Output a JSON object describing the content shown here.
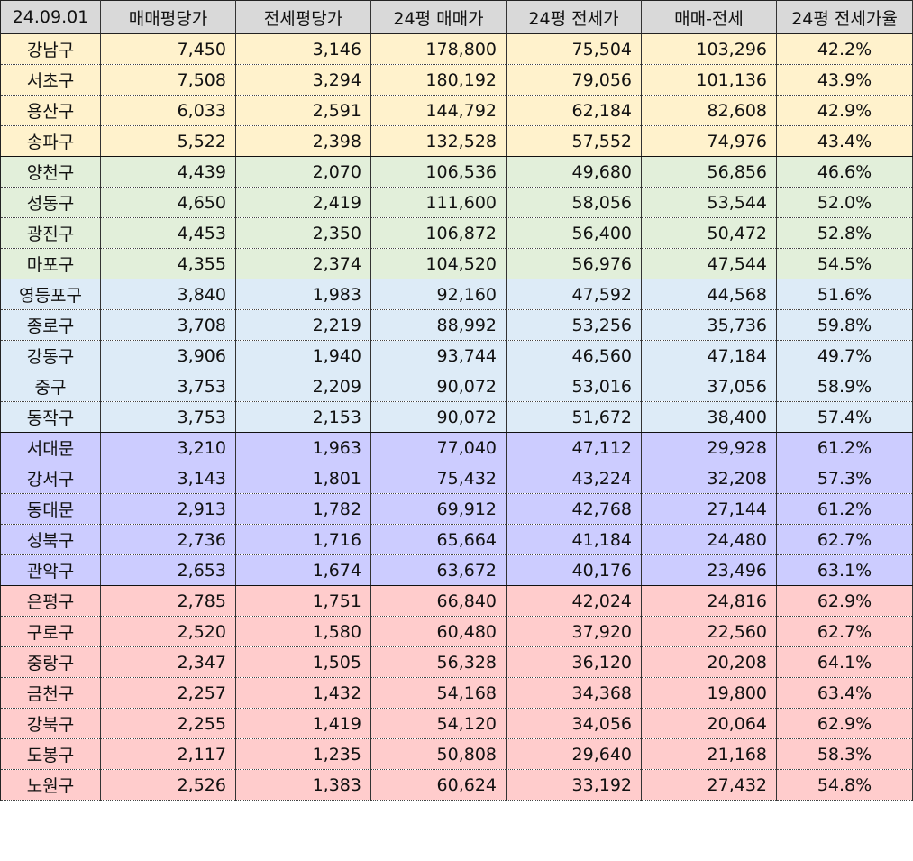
{
  "header": [
    "24.09.01",
    "매매평당가",
    "전세평당가",
    "24평 매매가",
    "24평 전세가",
    "매매-전세",
    "24평 전세가율"
  ],
  "group_colors": [
    "#fff2cc",
    "#e2efda",
    "#ddebf7",
    "#ccccff",
    "#ffcccc"
  ],
  "rows": [
    {
      "group": 1,
      "cells": [
        "강남구",
        "7,450",
        "3,146",
        "178,800",
        "75,504",
        "103,296",
        "42.2%"
      ]
    },
    {
      "group": 1,
      "cells": [
        "서초구",
        "7,508",
        "3,294",
        "180,192",
        "79,056",
        "101,136",
        "43.9%"
      ]
    },
    {
      "group": 1,
      "cells": [
        "용산구",
        "6,033",
        "2,591",
        "144,792",
        "62,184",
        "82,608",
        "42.9%"
      ]
    },
    {
      "group": 1,
      "cells": [
        "송파구",
        "5,522",
        "2,398",
        "132,528",
        "57,552",
        "74,976",
        "43.4%"
      ]
    },
    {
      "group": 2,
      "cells": [
        "양천구",
        "4,439",
        "2,070",
        "106,536",
        "49,680",
        "56,856",
        "46.6%"
      ]
    },
    {
      "group": 2,
      "cells": [
        "성동구",
        "4,650",
        "2,419",
        "111,600",
        "58,056",
        "53,544",
        "52.0%"
      ]
    },
    {
      "group": 2,
      "cells": [
        "광진구",
        "4,453",
        "2,350",
        "106,872",
        "56,400",
        "50,472",
        "52.8%"
      ]
    },
    {
      "group": 2,
      "cells": [
        "마포구",
        "4,355",
        "2,374",
        "104,520",
        "56,976",
        "47,544",
        "54.5%"
      ]
    },
    {
      "group": 3,
      "cells": [
        "영등포구",
        "3,840",
        "1,983",
        "92,160",
        "47,592",
        "44,568",
        "51.6%"
      ]
    },
    {
      "group": 3,
      "cells": [
        "종로구",
        "3,708",
        "2,219",
        "88,992",
        "53,256",
        "35,736",
        "59.8%"
      ]
    },
    {
      "group": 3,
      "cells": [
        "강동구",
        "3,906",
        "1,940",
        "93,744",
        "46,560",
        "47,184",
        "49.7%"
      ]
    },
    {
      "group": 3,
      "cells": [
        "중구",
        "3,753",
        "2,209",
        "90,072",
        "53,016",
        "37,056",
        "58.9%"
      ]
    },
    {
      "group": 3,
      "cells": [
        "동작구",
        "3,753",
        "2,153",
        "90,072",
        "51,672",
        "38,400",
        "57.4%"
      ]
    },
    {
      "group": 4,
      "cells": [
        "서대문",
        "3,210",
        "1,963",
        "77,040",
        "47,112",
        "29,928",
        "61.2%"
      ]
    },
    {
      "group": 4,
      "cells": [
        "강서구",
        "3,143",
        "1,801",
        "75,432",
        "43,224",
        "32,208",
        "57.3%"
      ]
    },
    {
      "group": 4,
      "cells": [
        "동대문",
        "2,913",
        "1,782",
        "69,912",
        "42,768",
        "27,144",
        "61.2%"
      ]
    },
    {
      "group": 4,
      "cells": [
        "성북구",
        "2,736",
        "1,716",
        "65,664",
        "41,184",
        "24,480",
        "62.7%"
      ]
    },
    {
      "group": 4,
      "cells": [
        "관악구",
        "2,653",
        "1,674",
        "63,672",
        "40,176",
        "23,496",
        "63.1%"
      ]
    },
    {
      "group": 5,
      "cells": [
        "은평구",
        "2,785",
        "1,751",
        "66,840",
        "42,024",
        "24,816",
        "62.9%"
      ]
    },
    {
      "group": 5,
      "cells": [
        "구로구",
        "2,520",
        "1,580",
        "60,480",
        "37,920",
        "22,560",
        "62.7%"
      ]
    },
    {
      "group": 5,
      "cells": [
        "중랑구",
        "2,347",
        "1,505",
        "56,328",
        "36,120",
        "20,208",
        "64.1%"
      ]
    },
    {
      "group": 5,
      "cells": [
        "금천구",
        "2,257",
        "1,432",
        "54,168",
        "34,368",
        "19,800",
        "63.4%"
      ]
    },
    {
      "group": 5,
      "cells": [
        "강북구",
        "2,255",
        "1,419",
        "54,120",
        "34,056",
        "20,064",
        "62.9%"
      ]
    },
    {
      "group": 5,
      "cells": [
        "도봉구",
        "2,117",
        "1,235",
        "50,808",
        "29,640",
        "21,168",
        "58.3%"
      ]
    },
    {
      "group": 5,
      "cells": [
        "노원구",
        "2,526",
        "1,383",
        "60,624",
        "33,192",
        "27,432",
        "54.8%"
      ]
    }
  ]
}
